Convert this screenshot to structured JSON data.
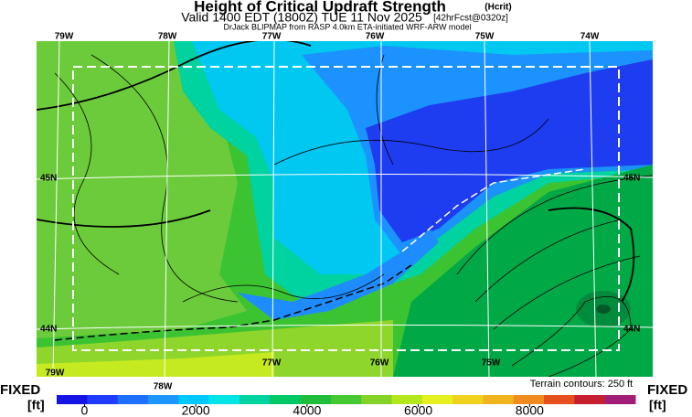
{
  "title": {
    "main": "Height of Critical Updraft Strength",
    "param": "(Hcrit)",
    "valid": "Valid 1400 EDT (1800Z) TUE 11 Nov 2025",
    "forecast": "[42hrFcst@0320z]",
    "source": "DrJack BLIPMAP from RASP 4.0km ETA-initiated WRF-ARW model"
  },
  "map": {
    "top_labels": [
      "79W",
      "78W",
      "77W",
      "76W",
      "75W",
      "74W"
    ],
    "bottom_labels": [
      "79W",
      "78W",
      "77W",
      "76W",
      "75W"
    ],
    "left_lat_labels": [
      "45N",
      "44N"
    ],
    "right_lat_labels": [
      "45N",
      "44N"
    ],
    "terrain_note": "Terrain contours: 250 ft"
  },
  "colorbar": {
    "left_label": "FIXED",
    "left_unit": "[ft]",
    "right_label": "FIXED",
    "right_unit": "[ft]",
    "range": [
      -500,
      9900
    ],
    "ticks": [
      0,
      2000,
      4000,
      6000,
      8000
    ],
    "colors": [
      "#1414e6",
      "#1e3cff",
      "#1e6eff",
      "#1e96ff",
      "#00c8ff",
      "#00e6e6",
      "#00d2a0",
      "#00c864",
      "#1ebe3c",
      "#46c832",
      "#82d228",
      "#b4e61e",
      "#e6f01e",
      "#f0d21e",
      "#f0b41e",
      "#f08c1e",
      "#e6501e",
      "#c81e32",
      "#a01e78"
    ]
  }
}
